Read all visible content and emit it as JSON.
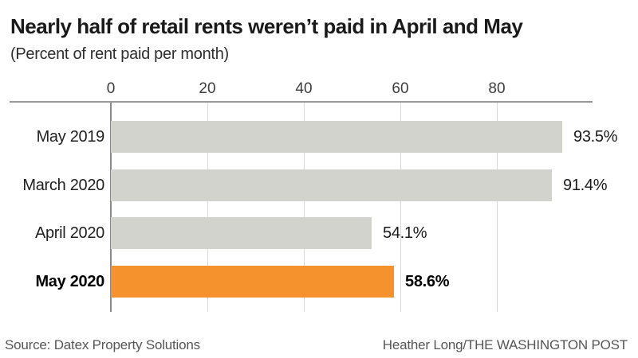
{
  "header": {
    "title": "Nearly half of retail rents weren’t paid in April and May",
    "subtitle": "(Percent of rent paid per month)"
  },
  "chart_data": {
    "type": "bar",
    "orientation": "horizontal",
    "title": "Nearly half of retail rents weren’t paid in April and May",
    "subtitle": "(Percent of rent paid per month)",
    "categories": [
      "May 2019",
      "March 2020",
      "April 2020",
      "May 2020"
    ],
    "values": [
      93.5,
      91.4,
      54.1,
      58.6
    ],
    "value_labels": [
      "93.5%",
      "91.4%",
      "54.1%",
      "58.6%"
    ],
    "emphasized_index": 3,
    "x_ticks": [
      0,
      20,
      40,
      60,
      80
    ],
    "x_tick_labels": [
      "0",
      "20",
      "40",
      "60",
      "80"
    ],
    "xlim": [
      0,
      100
    ],
    "axis_position": "top",
    "grid": true,
    "legend": false,
    "colors": {
      "bar_default": "#d2d3cc",
      "bar_emphasis": "#f6922d",
      "axis_line": "#999999",
      "gridline": "#d9d9d9",
      "zero_line": "#8a8a8a",
      "title_text": "#1a1a1a",
      "footer_text": "#565656"
    }
  },
  "footer": {
    "source": "Source: Datex Property Solutions",
    "credit": "Heather Long/THE WASHINGTON POST"
  }
}
